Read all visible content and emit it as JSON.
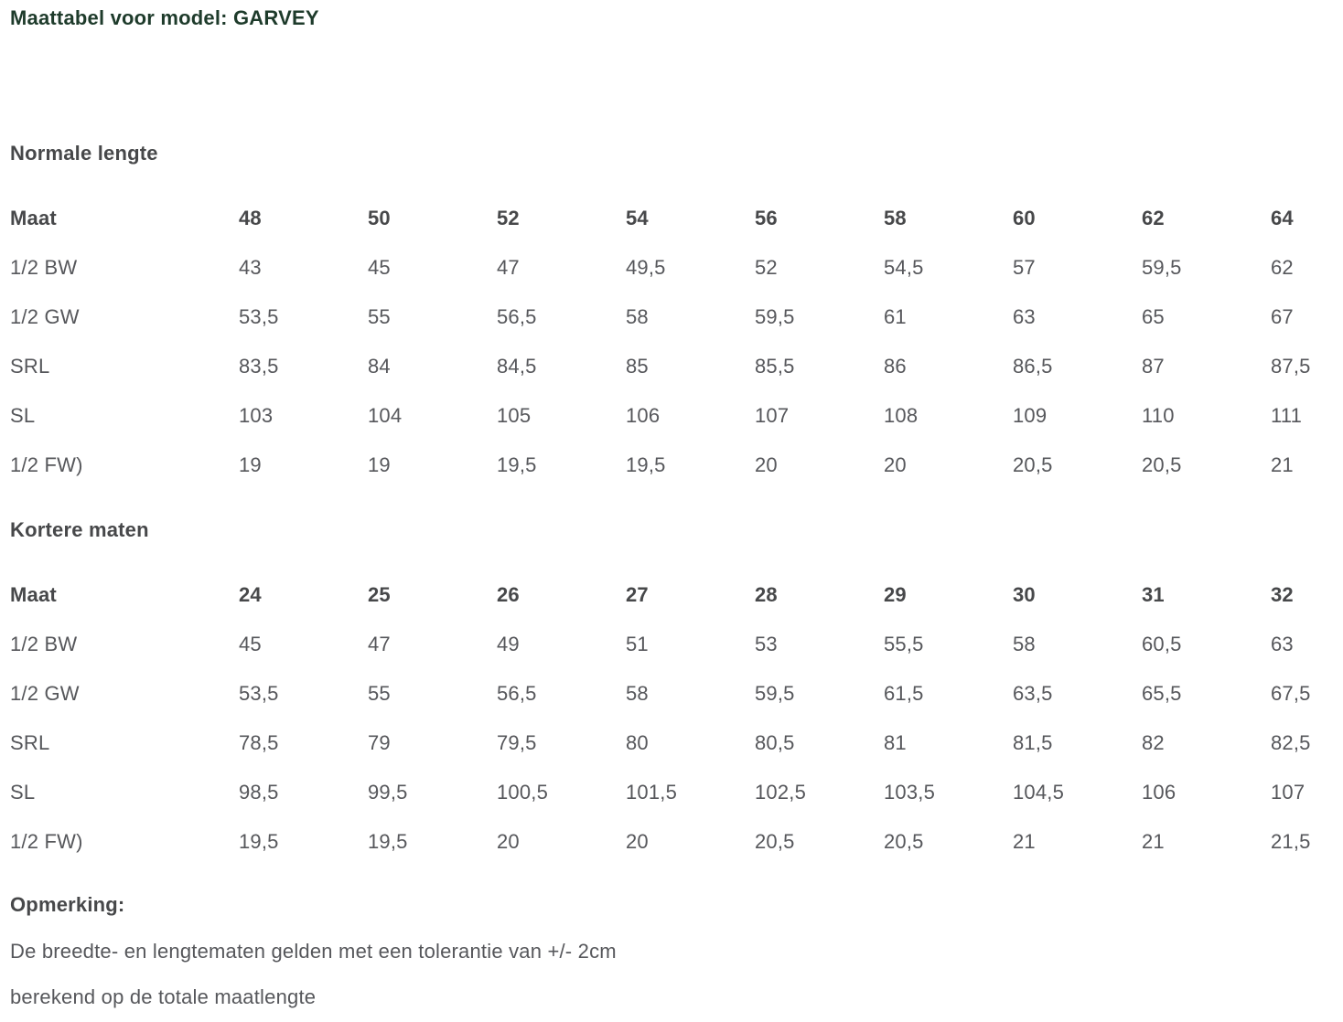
{
  "title": "Maattabel voor model: GARVEY",
  "colors": {
    "title": "#1e3b2b",
    "heading": "#47484a",
    "text": "#56575b"
  },
  "sections": [
    {
      "heading": "Normale lengte",
      "table": {
        "corner_label": "Maat",
        "sizes": [
          "48",
          "50",
          "52",
          "54",
          "56",
          "58",
          "60",
          "62",
          "64"
        ],
        "rows": [
          {
            "label": "1/2 BW",
            "values": [
              "43",
              "45",
              "47",
              "49,5",
              "52",
              "54,5",
              "57",
              "59,5",
              "62"
            ]
          },
          {
            "label": "1/2 GW",
            "values": [
              "53,5",
              "55",
              "56,5",
              "58",
              "59,5",
              "61",
              "63",
              "65",
              "67"
            ]
          },
          {
            "label": "SRL",
            "values": [
              "83,5",
              "84",
              "84,5",
              "85",
              "85,5",
              "86",
              "86,5",
              "87",
              "87,5"
            ]
          },
          {
            "label": "SL",
            "values": [
              "103",
              "104",
              "105",
              "106",
              "107",
              "108",
              "109",
              "110",
              "111"
            ]
          },
          {
            "label": "1/2 FW)",
            "values": [
              "19",
              "19",
              "19,5",
              "19,5",
              "20",
              "20",
              "20,5",
              "20,5",
              "21"
            ]
          }
        ]
      }
    },
    {
      "heading": "Kortere maten",
      "table": {
        "corner_label": "Maat",
        "sizes": [
          "24",
          "25",
          "26",
          "27",
          "28",
          "29",
          "30",
          "31",
          "32"
        ],
        "rows": [
          {
            "label": "1/2 BW",
            "values": [
              "45",
              "47",
              "49",
              "51",
              "53",
              "55,5",
              "58",
              "60,5",
              "63"
            ]
          },
          {
            "label": "1/2 GW",
            "values": [
              "53,5",
              "55",
              "56,5",
              "58",
              "59,5",
              "61,5",
              "63,5",
              "65,5",
              "67,5"
            ]
          },
          {
            "label": "SRL",
            "values": [
              "78,5",
              "79",
              "79,5",
              "80",
              "80,5",
              "81",
              "81,5",
              "82",
              "82,5"
            ]
          },
          {
            "label": "SL",
            "values": [
              "98,5",
              "99,5",
              "100,5",
              "101,5",
              "102,5",
              "103,5",
              "104,5",
              "106",
              "107"
            ]
          },
          {
            "label": "1/2 FW)",
            "values": [
              "19,5",
              "19,5",
              "20",
              "20",
              "20,5",
              "20,5",
              "21",
              "21",
              "21,5"
            ]
          }
        ]
      }
    }
  ],
  "note": {
    "heading": "Opmerking:",
    "lines": [
      "De breedte- en lengtematen gelden met een tolerantie van +/- 2cm",
      "berekend op de totale maatlengte"
    ]
  }
}
